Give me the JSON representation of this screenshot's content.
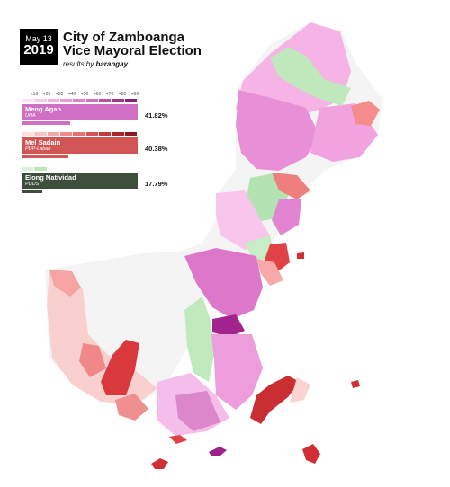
{
  "header": {
    "month_day": "May 13",
    "year": "2019",
    "title_line1": "City of Zamboanga",
    "title_line2": "Vice Mayoral Election",
    "subtitle_prefix": "results by",
    "subtitle_bold": "barangay"
  },
  "legend": {
    "ticks": [
      "<10",
      "+20",
      "+30",
      "+40",
      "+50",
      "+60",
      "+70",
      "+80",
      "+90"
    ],
    "candidates": [
      {
        "name": "Meng Agan",
        "party": "UNA",
        "percent": "41.82%",
        "share": 41.82,
        "color": "#d070c4",
        "scale": [
          "#fde0f4",
          "#f7c9ea",
          "#f0b2e0",
          "#e79ad4",
          "#dd82c8",
          "#d070c4",
          "#bb4faa",
          "#a03892",
          "#8a1f7c"
        ]
      },
      {
        "name": "Mel Sadain",
        "party": "PDP-Laban",
        "percent": "40.38%",
        "share": 40.38,
        "color": "#d25556",
        "scale": [
          "#fde0de",
          "#f9c6c4",
          "#f3aaa8",
          "#ec8d8b",
          "#e4716f",
          "#d25556",
          "#bd3c3f",
          "#a6282c",
          "#8c1a1e"
        ]
      },
      {
        "name": "Elong Natividad",
        "party": "PDDS",
        "percent": "17.79%",
        "share": 17.79,
        "color": "#3d4f3a",
        "scale": [
          "#d8f1d6",
          "#bfe6bb",
          "",
          "",
          "",
          "",
          "",
          "",
          ""
        ]
      }
    ]
  }
}
